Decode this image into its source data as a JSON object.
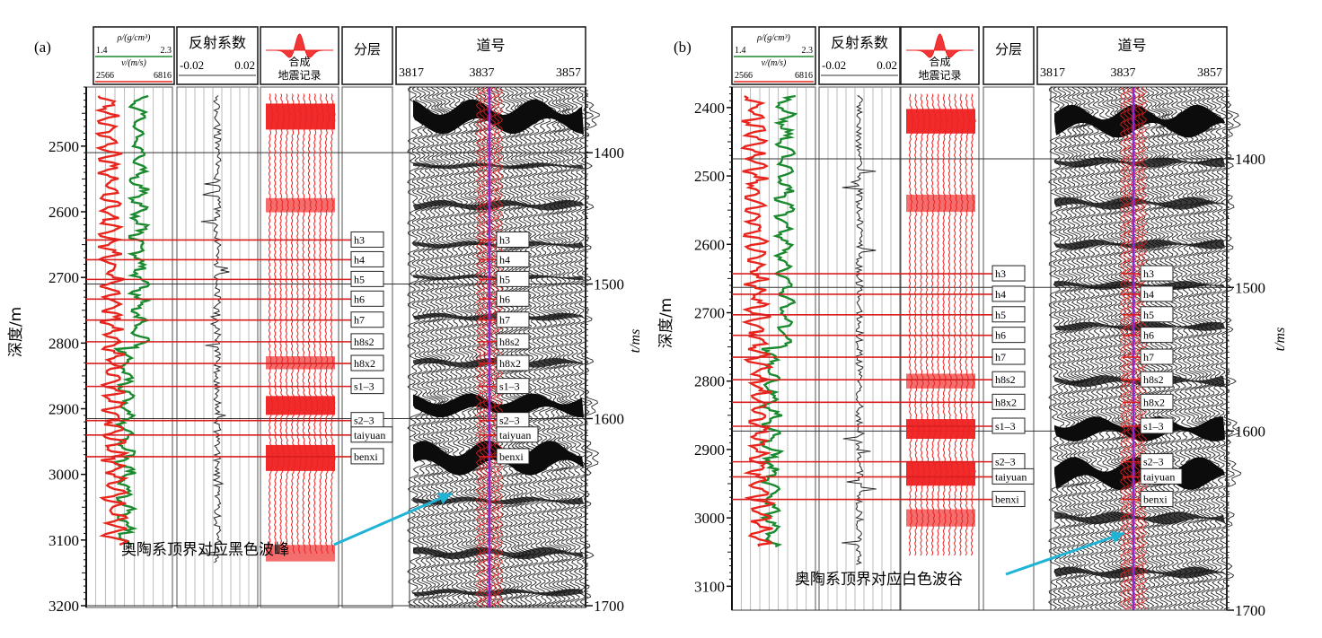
{
  "chart_data": [
    {
      "type": "table",
      "panel_label": "(a)",
      "header": {
        "log_top": "ρ/(g/cm³)",
        "log_rho_min": "1.4",
        "log_rho_max": "2.3",
        "log_v_label": "v/(m/s)",
        "log_v_min": "2566",
        "log_v_max": "6816",
        "refl_title": "反射系数",
        "refl_min": "-0.02",
        "refl_max": "0.02",
        "synth_title_1": "合成",
        "synth_title_2": "地震记录",
        "layer_title": "分层",
        "trace_title": "道号",
        "trace_labels": [
          "3817",
          "3837",
          "3857"
        ]
      },
      "depth_axis": {
        "label": "深度/m",
        "min": 2410,
        "max": 3200,
        "ticks": [
          2500,
          2600,
          2700,
          2800,
          2900,
          3000,
          3100,
          3200
        ]
      },
      "time_axis": {
        "label": "t/ms",
        "ticks": [
          1400,
          1500,
          1600,
          1700
        ],
        "tick_depths": [
          2510,
          2710,
          2915,
          3200
        ]
      },
      "horizons": [
        {
          "name": "h3",
          "depth": 2643
        },
        {
          "name": "h4",
          "depth": 2673
        },
        {
          "name": "h5",
          "depth": 2703
        },
        {
          "name": "h6",
          "depth": 2733
        },
        {
          "name": "h7",
          "depth": 2765
        },
        {
          "name": "h8s2",
          "depth": 2798
        },
        {
          "name": "h8x2",
          "depth": 2831
        },
        {
          "name": "s1–3",
          "depth": 2866
        },
        {
          "name": "s2–3",
          "depth": 2918
        },
        {
          "name": "taiyuan",
          "depth": 2940
        },
        {
          "name": "benxi",
          "depth": 2973
        }
      ],
      "annotation": "奥陶系顶界对应黑色波峰"
    },
    {
      "type": "table",
      "panel_label": "(b)",
      "header": {
        "log_top": "ρ/(g/cm³)",
        "log_rho_min": "1.4",
        "log_rho_max": "2.3",
        "log_v_label": "v/(m/s)",
        "log_v_min": "2566",
        "log_v_max": "6816",
        "refl_title": "反射系数",
        "refl_min": "-0.02",
        "refl_max": "0.02",
        "synth_title_1": "合成",
        "synth_title_2": "地震记录",
        "layer_title": "分层",
        "trace_title": "道号",
        "trace_labels": [
          "3817",
          "3837",
          "3857"
        ]
      },
      "depth_axis": {
        "label": "深度/m",
        "min": 2370,
        "max": 3135,
        "ticks": [
          2400,
          2500,
          2600,
          2700,
          2800,
          2900,
          3000,
          3100
        ]
      },
      "time_axis": {
        "label": "t/ms",
        "ticks": [
          1400,
          1500,
          1600,
          1700
        ],
        "tick_depths": [
          2475,
          2663,
          2873,
          3135
        ]
      },
      "horizons": [
        {
          "name": "h3",
          "depth": 2643
        },
        {
          "name": "h4",
          "depth": 2673
        },
        {
          "name": "h5",
          "depth": 2703
        },
        {
          "name": "h6",
          "depth": 2733
        },
        {
          "name": "h7",
          "depth": 2765
        },
        {
          "name": "h8s2",
          "depth": 2798
        },
        {
          "name": "h8x2",
          "depth": 2831
        },
        {
          "name": "s1–3",
          "depth": 2866
        },
        {
          "name": "s2–3",
          "depth": 2918
        },
        {
          "name": "taiyuan",
          "depth": 2940
        },
        {
          "name": "benxi",
          "depth": 2973
        }
      ],
      "annotation": "奥陶系顶界对应白色波谷"
    }
  ],
  "colors": {
    "density_curve": "#e8241c",
    "velocity_curve": "#1a8a2e",
    "horizon_line": "#d81e1e",
    "synthetic": "#ee2020",
    "reflectivity": "#222222",
    "well_track": "#8a2bd8",
    "arrow": "#1fb3d6"
  }
}
